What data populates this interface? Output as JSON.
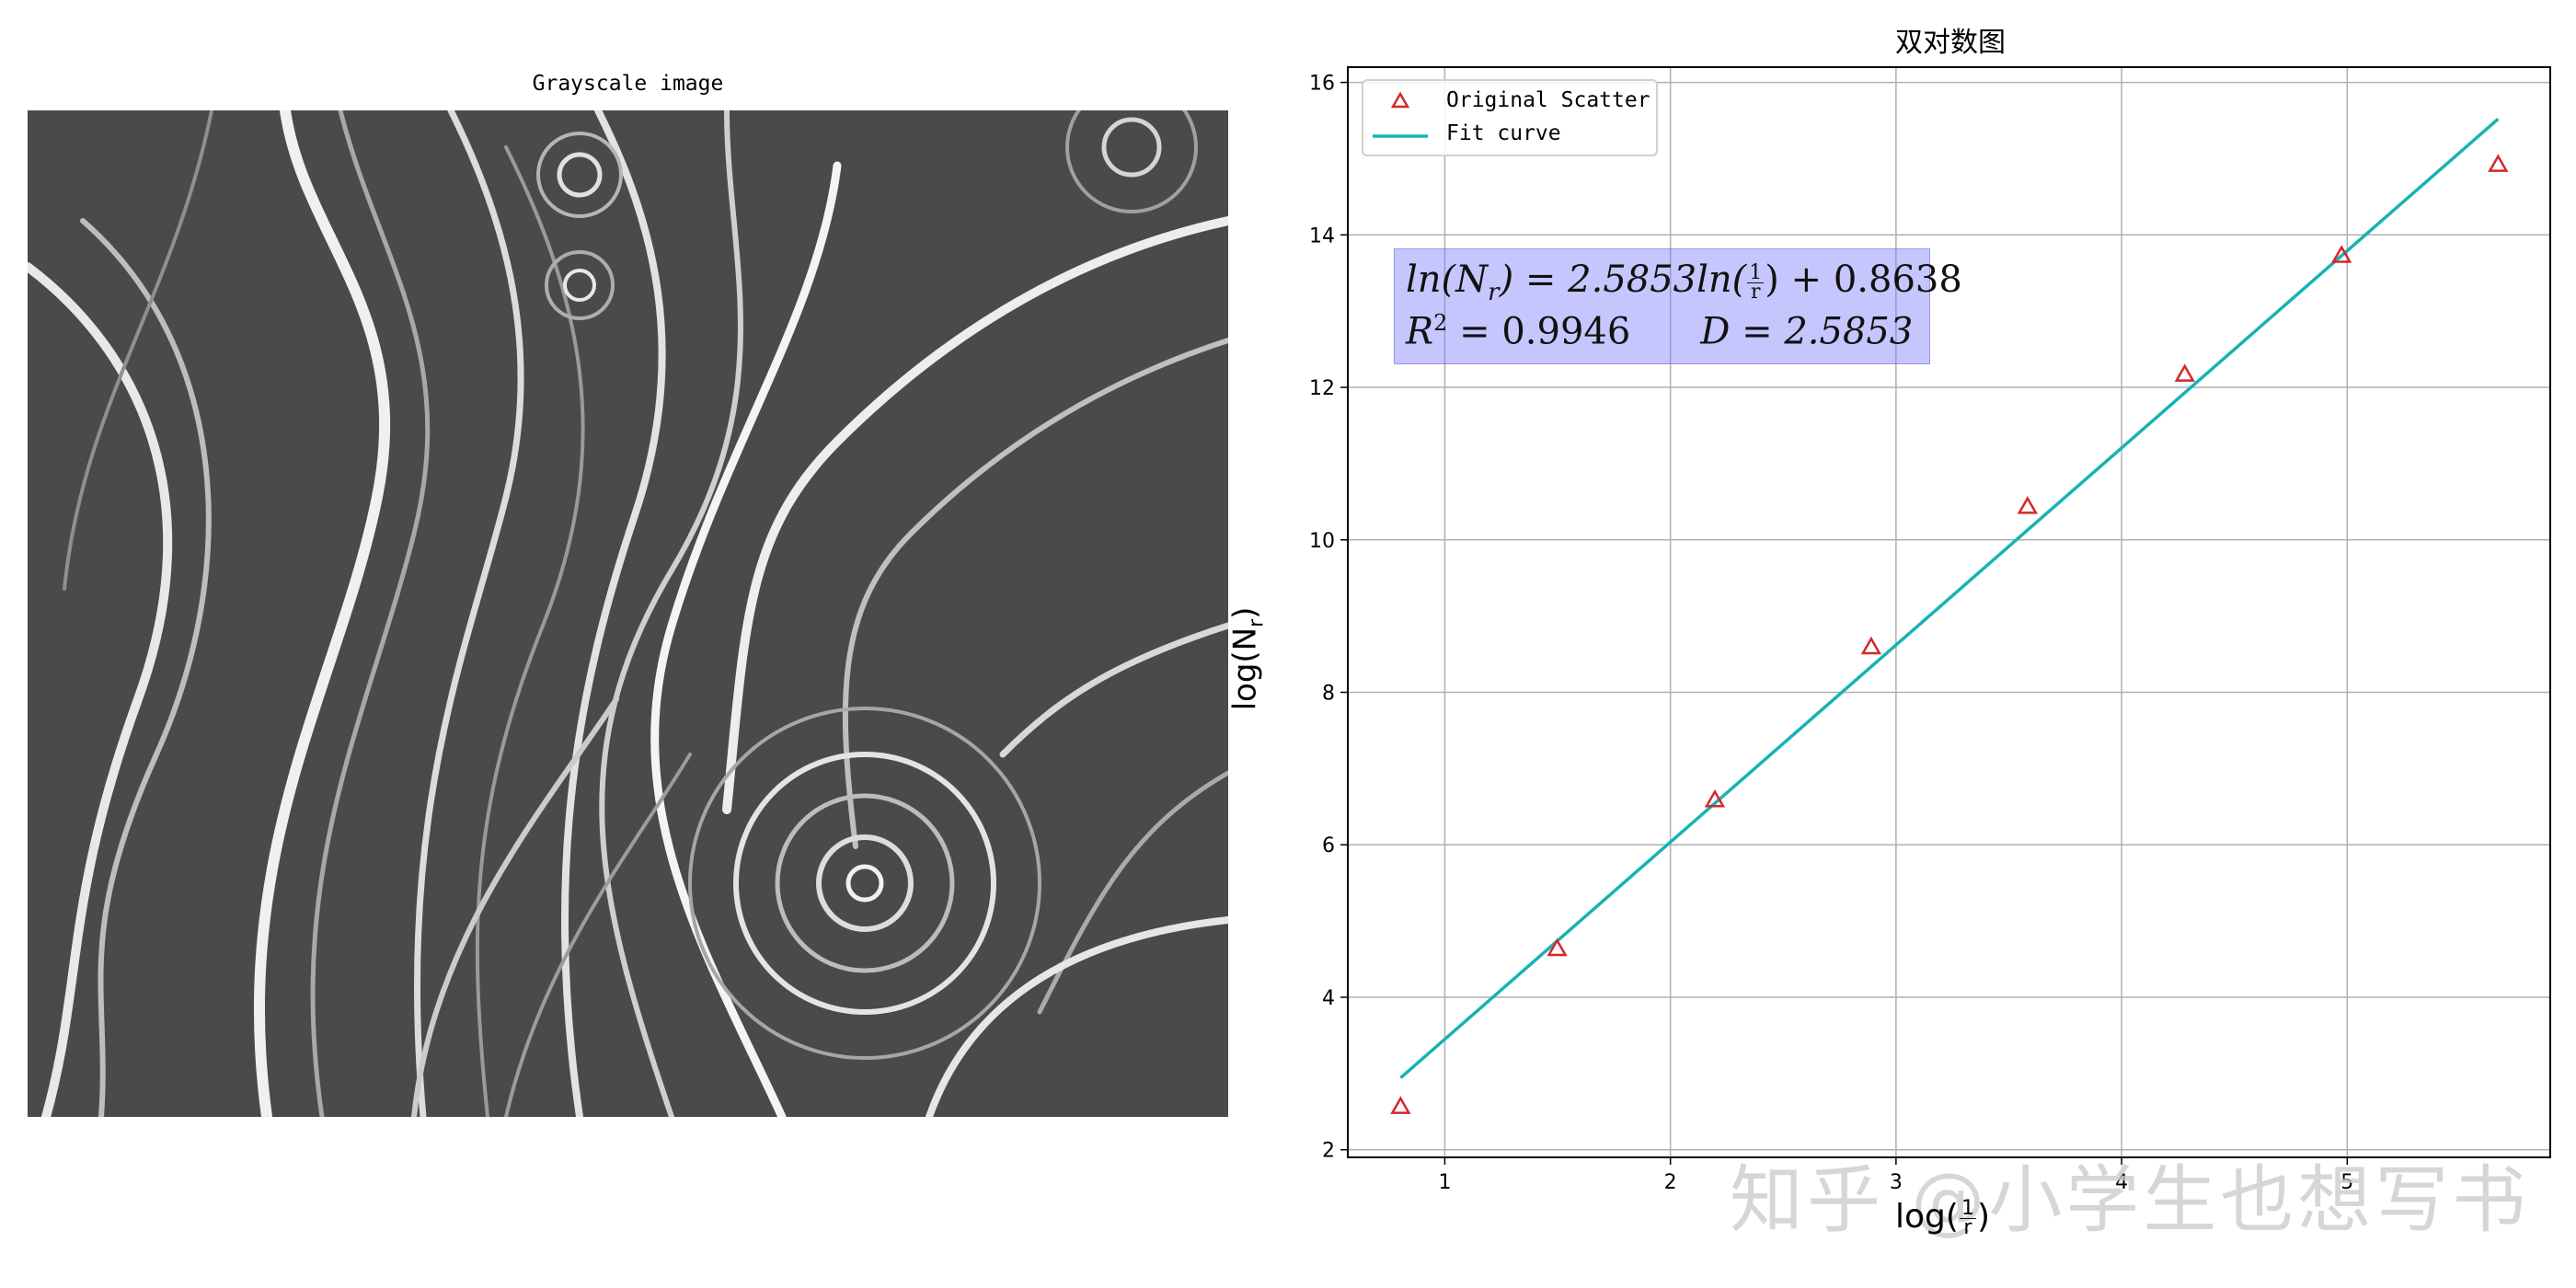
{
  "left_panel": {
    "title": "Grayscale image"
  },
  "chart_data": {
    "type": "scatter",
    "title": "双对数图",
    "xlabel": "log(1/r)",
    "ylabel": "log(N_r)",
    "xlim": [
      0.57,
      5.9
    ],
    "ylim": [
      1.9,
      16.2
    ],
    "xticks": [
      1,
      2,
      3,
      4,
      5
    ],
    "yticks": [
      2,
      4,
      6,
      8,
      10,
      12,
      14,
      16
    ],
    "grid": true,
    "legend_placement": "top-left",
    "series": [
      {
        "name": "Original Scatter",
        "marker": "triangle",
        "color": "#d62728",
        "x": [
          0.804,
          1.498,
          2.197,
          2.89,
          3.583,
          4.28,
          4.975,
          5.669
        ],
        "y": [
          2.565,
          4.637,
          6.588,
          8.594,
          10.436,
          12.171,
          13.729,
          14.922
        ]
      },
      {
        "name": "Fit curve",
        "line": true,
        "color": "#17b3b3",
        "x": [
          0.804,
          5.669
        ],
        "y": [
          2.943,
          15.521
        ]
      }
    ],
    "annotation": {
      "line1_prefix": "ln(N",
      "line1_sub": "r",
      "line1_mid": ") = 2.5853ln(",
      "line1_frac_num": "1",
      "line1_frac_den": "r",
      "line1_suffix": ") + 0.8638",
      "line2_r2_label": "R",
      "line2_r2_sup": "2",
      "line2_r2_value": " = 0.9946",
      "line2_d": "D = 2.5853"
    },
    "xlabel_parts": {
      "prefix": "log(",
      "num": "1",
      "den": "r",
      "suffix": ")"
    },
    "ylabel_parts": {
      "prefix": "log(N",
      "sub": "r",
      "suffix": ")"
    }
  },
  "watermark": "知乎 @小学生也想写书",
  "colors": {
    "scatter": "#d62728",
    "fit": "#17b3b3",
    "grid": "#b0b0b0",
    "annotation_box": "#7878ff"
  }
}
